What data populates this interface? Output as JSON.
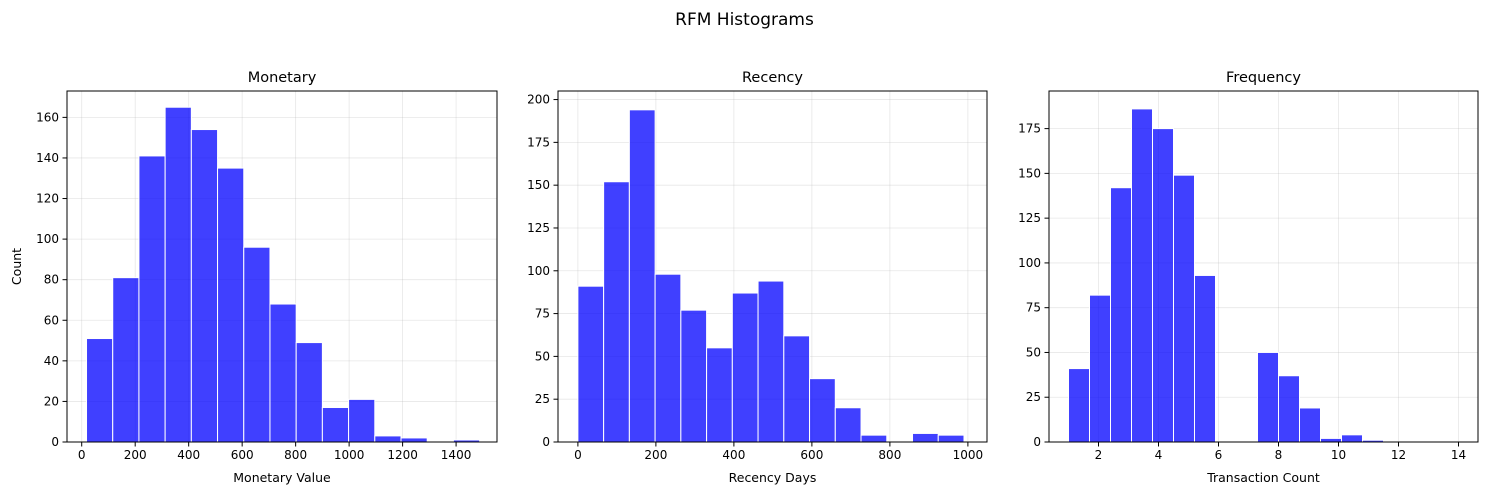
{
  "figure": {
    "suptitle": "RFM Histograms"
  },
  "style": {
    "bar_fill": "#0000ff",
    "bar_opacity": 0.75,
    "bar_edge": "#ffffff",
    "grid_color": "#b0b0b0"
  },
  "chart_data": [
    {
      "type": "bar",
      "id": "monetary",
      "title": "Monetary",
      "xlabel": "Monetary Value",
      "ylabel": "Count",
      "xlim": [
        -55,
        1553
      ],
      "ylim": [
        0,
        173
      ],
      "xticks": [
        0,
        200,
        400,
        600,
        800,
        1000,
        1200,
        1400
      ],
      "yticks": [
        0,
        20,
        40,
        60,
        80,
        100,
        120,
        140,
        160
      ],
      "bin_edges": [
        18,
        116,
        214,
        312,
        410,
        508,
        606,
        704,
        802,
        900,
        998,
        1096,
        1194,
        1292,
        1390,
        1488
      ],
      "values": [
        51,
        81,
        141,
        165,
        154,
        135,
        96,
        68,
        49,
        17,
        21,
        3,
        2,
        0,
        1
      ],
      "grid": true
    },
    {
      "type": "bar",
      "id": "recency",
      "title": "Recency",
      "xlabel": "Recency Days",
      "ylabel": "",
      "xlim": [
        -51,
        1049
      ],
      "ylim": [
        0,
        205
      ],
      "xticks": [
        0,
        200,
        400,
        600,
        800,
        1000
      ],
      "yticks": [
        0,
        25,
        50,
        75,
        100,
        125,
        150,
        175,
        200
      ],
      "bin_edges": [
        0,
        66,
        132,
        198,
        264,
        330,
        396,
        462,
        528,
        594,
        660,
        726,
        792,
        858,
        924,
        990
      ],
      "values": [
        91,
        152,
        194,
        98,
        77,
        55,
        87,
        94,
        62,
        37,
        20,
        4,
        0,
        5,
        4
      ],
      "grid": true
    },
    {
      "type": "bar",
      "id": "frequency",
      "title": "Frequency",
      "xlabel": "Transaction Count",
      "ylabel": "",
      "xlim": [
        0.35,
        14.65
      ],
      "ylim": [
        0,
        196
      ],
      "xticks": [
        2,
        4,
        6,
        8,
        10,
        12,
        14
      ],
      "yticks": [
        0,
        25,
        50,
        75,
        100,
        125,
        150,
        175
      ],
      "bin_edges": [
        1,
        1.7,
        2.4,
        3.1,
        3.8,
        4.5,
        5.2,
        5.9,
        6.6,
        7.3,
        8,
        8.7,
        9.4,
        10.1,
        10.8,
        11.5,
        12.2,
        12.9,
        13.6,
        14.3
      ],
      "values": [
        41,
        82,
        142,
        186,
        175,
        149,
        93,
        0,
        0,
        50,
        37,
        19,
        2,
        4,
        1,
        0,
        0,
        0,
        0
      ],
      "grid": true
    }
  ]
}
